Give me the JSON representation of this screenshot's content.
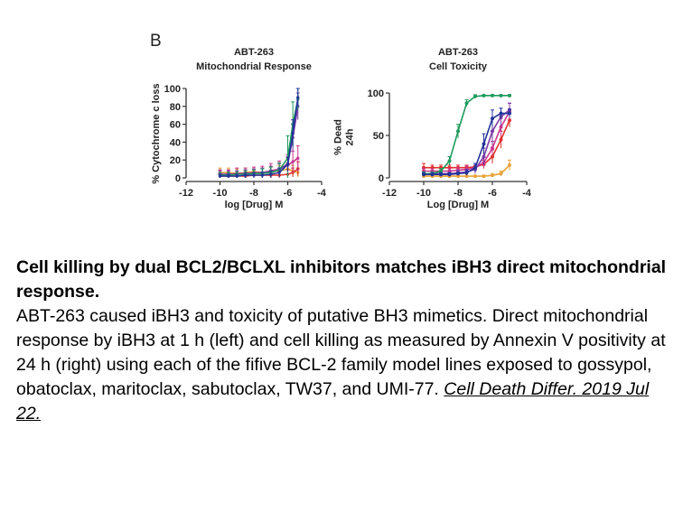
{
  "figure": {
    "panel_letter": "B"
  },
  "caption": {
    "heading": "Cell killing by dual BCL2/BCLXL inhibitors matches iBH3 direct mitochondrial response.",
    "body": "ABT-263 caused iBH3 and toxicity of putative BH3 mimetics. Direct mitochondrial response by iBH3 at 1 h (left) and cell killing as measured by Annexin V positivity at 24 h (right) using each of the fifive BCL-2 family model lines exposed to gossypol, obatoclax, maritoclax, sabutoclax, TW37, and UMI-77. ",
    "citation": "Cell Death Differ. 2019 Jul 22."
  },
  "colors": {
    "orange": "#e8a33a",
    "red": "#e0312f",
    "magenta": "#c8358f",
    "purple": "#7a3aa8",
    "green": "#1f9a5c",
    "blue": "#23349a",
    "axis": "#333333"
  },
  "chart_data": [
    {
      "type": "line",
      "title": [
        "ABT-263",
        "Mitochondrial Response"
      ],
      "xlabel": "log [Drug] M",
      "ylabel": "% Cytochrome c loss",
      "xlim": [
        -12,
        -4
      ],
      "ylim": [
        0,
        100
      ],
      "xticks": [
        "-12",
        "-10",
        "-8",
        "-6",
        "-4"
      ],
      "yticks": [
        "0",
        "20",
        "40",
        "60",
        "80",
        "100"
      ],
      "x": [
        -10.0,
        -9.5,
        -9.0,
        -8.5,
        -8.0,
        -7.5,
        -7.0,
        -6.5,
        -6.0,
        -5.7,
        -5.4
      ],
      "series": [
        {
          "color": "#e8a33a",
          "values": [
            6,
            6,
            5,
            6,
            7,
            6,
            7,
            8,
            10,
            8,
            6
          ],
          "errors": [
            5,
            5,
            5,
            5,
            5,
            5,
            6,
            6,
            7,
            6,
            5
          ]
        },
        {
          "color": "#e0312f",
          "values": [
            2,
            2,
            2,
            2,
            3,
            3,
            3,
            3,
            4,
            6,
            10
          ],
          "errors": [
            3,
            3,
            3,
            3,
            3,
            3,
            3,
            4,
            5,
            5,
            8
          ]
        },
        {
          "color": "#c8358f",
          "values": [
            4,
            4,
            5,
            5,
            6,
            6,
            8,
            10,
            14,
            18,
            22
          ],
          "errors": [
            5,
            5,
            6,
            6,
            6,
            7,
            8,
            9,
            10,
            12,
            14
          ]
        },
        {
          "color": "#7a3aa8",
          "values": [
            4,
            4,
            4,
            5,
            5,
            6,
            7,
            9,
            16,
            45,
            80
          ],
          "errors": [
            4,
            4,
            4,
            4,
            5,
            5,
            6,
            7,
            10,
            15,
            15
          ]
        },
        {
          "color": "#1f9a5c",
          "values": [
            3,
            3,
            4,
            4,
            5,
            5,
            6,
            9,
            22,
            60,
            88
          ],
          "errors": [
            3,
            3,
            3,
            4,
            4,
            5,
            6,
            8,
            25,
            25,
            12
          ]
        },
        {
          "color": "#23349a",
          "values": [
            2,
            2,
            2,
            3,
            3,
            3,
            4,
            6,
            15,
            50,
            90
          ],
          "errors": [
            2,
            2,
            2,
            3,
            3,
            3,
            4,
            5,
            8,
            15,
            10
          ]
        }
      ]
    },
    {
      "type": "line",
      "title": [
        "ABT-263",
        "Cell Toxicity"
      ],
      "xlabel": "Log [Drug] M",
      "ylabel": [
        "% Dead",
        "24h"
      ],
      "xlim": [
        -12,
        -4
      ],
      "ylim": [
        0,
        100
      ],
      "xticks": [
        "-12",
        "-10",
        "-8",
        "-6",
        "-4"
      ],
      "yticks": [
        "0",
        "50",
        "100"
      ],
      "x": [
        -10.0,
        -9.5,
        -9.0,
        -8.5,
        -8.0,
        -7.5,
        -7.0,
        -6.5,
        -6.0,
        -5.5,
        -5.0
      ],
      "series": [
        {
          "color": "#e8a33a",
          "values": [
            2,
            2,
            2,
            2,
            2,
            2,
            2,
            2,
            3,
            5,
            15
          ],
          "errors": [
            1,
            1,
            1,
            1,
            1,
            1,
            1,
            1,
            2,
            3,
            6
          ]
        },
        {
          "color": "#e0312f",
          "values": [
            12,
            12,
            12,
            12,
            12,
            12,
            13,
            16,
            25,
            45,
            68
          ],
          "errors": [
            5,
            3,
            3,
            3,
            3,
            3,
            4,
            5,
            8,
            10,
            8
          ]
        },
        {
          "color": "#c8358f",
          "values": [
            8,
            8,
            8,
            8,
            9,
            10,
            12,
            18,
            35,
            60,
            78
          ],
          "errors": [
            3,
            3,
            3,
            3,
            3,
            4,
            5,
            6,
            8,
            10,
            10
          ]
        },
        {
          "color": "#7a3aa8",
          "values": [
            5,
            5,
            5,
            5,
            6,
            7,
            10,
            25,
            55,
            72,
            80
          ],
          "errors": [
            2,
            2,
            2,
            2,
            3,
            3,
            5,
            10,
            15,
            10,
            8
          ]
        },
        {
          "color": "#1f9a5c",
          "values": [
            5,
            5,
            8,
            20,
            55,
            88,
            96,
            97,
            97,
            97,
            97
          ],
          "errors": [
            2,
            2,
            3,
            5,
            8,
            4,
            2,
            1,
            1,
            1,
            1
          ]
        },
        {
          "color": "#23349a",
          "values": [
            4,
            4,
            4,
            4,
            5,
            6,
            12,
            40,
            70,
            76,
            76
          ],
          "errors": [
            2,
            2,
            2,
            2,
            2,
            3,
            5,
            12,
            10,
            6,
            5
          ]
        }
      ]
    }
  ]
}
